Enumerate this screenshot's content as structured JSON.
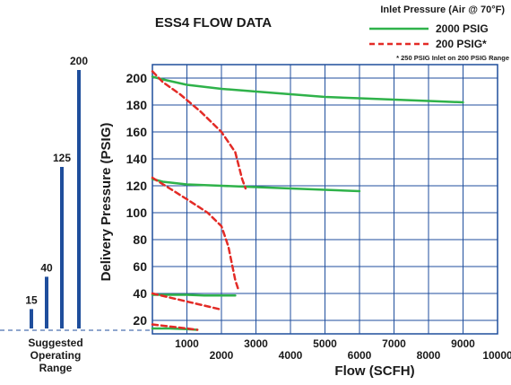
{
  "chart_data": [
    {
      "type": "line",
      "title": "ESS4 FLOW DATA",
      "xlabel": "Flow (SCFH)",
      "ylabel": "Delivery Pressure (PSIG)",
      "xlim": [
        0,
        10000
      ],
      "ylim": [
        10,
        210
      ],
      "x_ticks": [
        1000,
        2000,
        3000,
        4000,
        5000,
        6000,
        7000,
        8000,
        9000,
        10000
      ],
      "y_ticks": [
        20,
        40,
        60,
        80,
        100,
        120,
        140,
        160,
        180,
        200
      ],
      "grid": true,
      "legend": {
        "title": "Inlet Pressure (Air @ 70°F)",
        "position": "top-right",
        "note": "* 250 PSIG Inlet on 200 PSIG Range"
      },
      "series": [
        {
          "name": "2000 PSIG",
          "color": "#2fb24a",
          "style": "solid",
          "curves": [
            {
              "x": [
                0,
                300,
                1000,
                2000,
                3000,
                4000,
                5000,
                6000,
                7000,
                8000,
                9000
              ],
              "y": [
                201,
                199,
                195,
                192,
                190,
                188,
                186,
                185,
                184,
                183,
                182
              ]
            },
            {
              "x": [
                0,
                300,
                1000,
                2000,
                3000,
                4000,
                5000,
                6000
              ],
              "y": [
                125,
                123,
                121,
                120,
                119,
                118,
                117,
                116
              ]
            },
            {
              "x": [
                0,
                500,
                1000,
                1500,
                2000,
                2400
              ],
              "y": [
                39,
                39,
                39,
                38.5,
                38.5,
                38.5
              ]
            },
            {
              "x": [
                0,
                500,
                1000,
                1300
              ],
              "y": [
                14,
                14,
                13.5,
                13
              ]
            }
          ]
        },
        {
          "name": "200 PSIG*",
          "color": "#e32b26",
          "style": "dashed",
          "curves": [
            {
              "x": [
                0,
                300,
                800,
                1400,
                2000,
                2400,
                2600,
                2700
              ],
              "y": [
                205,
                197,
                188,
                175,
                160,
                145,
                125,
                118
              ]
            },
            {
              "x": [
                0,
                500,
                1000,
                1600,
                2000,
                2200,
                2400,
                2500
              ],
              "y": [
                126,
                118,
                110,
                100,
                90,
                75,
                50,
                42
              ]
            },
            {
              "x": [
                0,
                500,
                1000,
                1500,
                2000
              ],
              "y": [
                40,
                37,
                34,
                31,
                28
              ]
            },
            {
              "x": [
                0,
                500,
                1000,
                1300
              ],
              "y": [
                17,
                15.5,
                14,
                13
              ]
            }
          ]
        }
      ]
    },
    {
      "type": "bar",
      "title": "Suggested Operating Range",
      "categories": [
        "15",
        "40",
        "125",
        "200"
      ],
      "values": [
        15,
        40,
        125,
        200
      ],
      "color": "#1f4e9c"
    }
  ]
}
